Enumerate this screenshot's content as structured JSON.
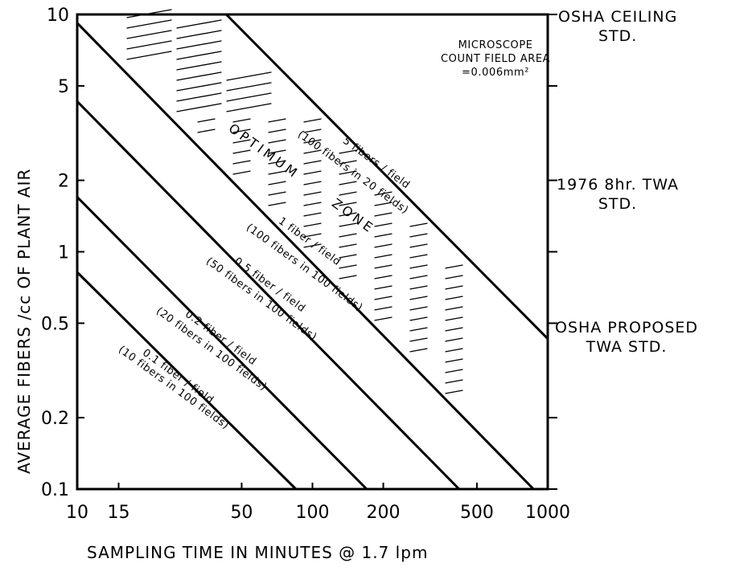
{
  "chart_data": {
    "type": "line",
    "x_scale": "log",
    "y_scale": "log",
    "xlabel": "SAMPLING TIME IN MINUTES @ 1.7 lpm",
    "ylabel": "AVERAGE FIBERS /cc OF PLANT AIR",
    "xlim": [
      10,
      1000
    ],
    "ylim": [
      0.1,
      10
    ],
    "x_ticks": [
      10,
      15,
      50,
      100,
      200,
      500,
      1000
    ],
    "x_tick_labels": [
      "10",
      "15",
      "50",
      "100",
      "200",
      "500",
      "1000"
    ],
    "y_ticks": [
      0.1,
      0.2,
      0.5,
      1,
      2,
      5,
      10
    ],
    "y_tick_labels": [
      "0.1",
      "0.2",
      "0.5",
      "1",
      "2",
      "5",
      "10"
    ],
    "grid": false,
    "series": [
      {
        "label": "5 fibers / field",
        "label2": "(100 fibers in 20 fields)",
        "x": [
          43,
          1000
        ],
        "y": [
          10,
          0.43
        ]
      },
      {
        "label": "1 fiber / field",
        "label2": "(100 fibers in 100 fields)",
        "x": [
          10,
          870
        ],
        "y": [
          9.2,
          0.1
        ]
      },
      {
        "label": "0.5 fiber / field",
        "label2": "(50 fibers in 100 fields)",
        "x": [
          10,
          420
        ],
        "y": [
          4.3,
          0.1
        ]
      },
      {
        "label": "0.2 fiber / field",
        "label2": "(20 fibers in 100 fields)",
        "x": [
          10,
          170
        ],
        "y": [
          1.7,
          0.1
        ]
      },
      {
        "label": "0.1 fiber / field",
        "label2": "(10 fibers in 100 fields)",
        "x": [
          10,
          85
        ],
        "y": [
          0.82,
          0.1
        ]
      }
    ],
    "zone_label": "OPTIMUM ZONE",
    "box_note": [
      "MICROSCOPE",
      "COUNT FIELD AREA",
      "=0.006mm²"
    ],
    "right_annotations": [
      {
        "y": 10,
        "lines": [
          "OSHA CEILING",
          "STD."
        ]
      },
      {
        "y": 2,
        "lines": [
          "1976 8hr. TWA",
          "STD."
        ]
      },
      {
        "y": 0.5,
        "lines": [
          "OSHA PROPOSED",
          "TWA STD."
        ]
      }
    ]
  }
}
